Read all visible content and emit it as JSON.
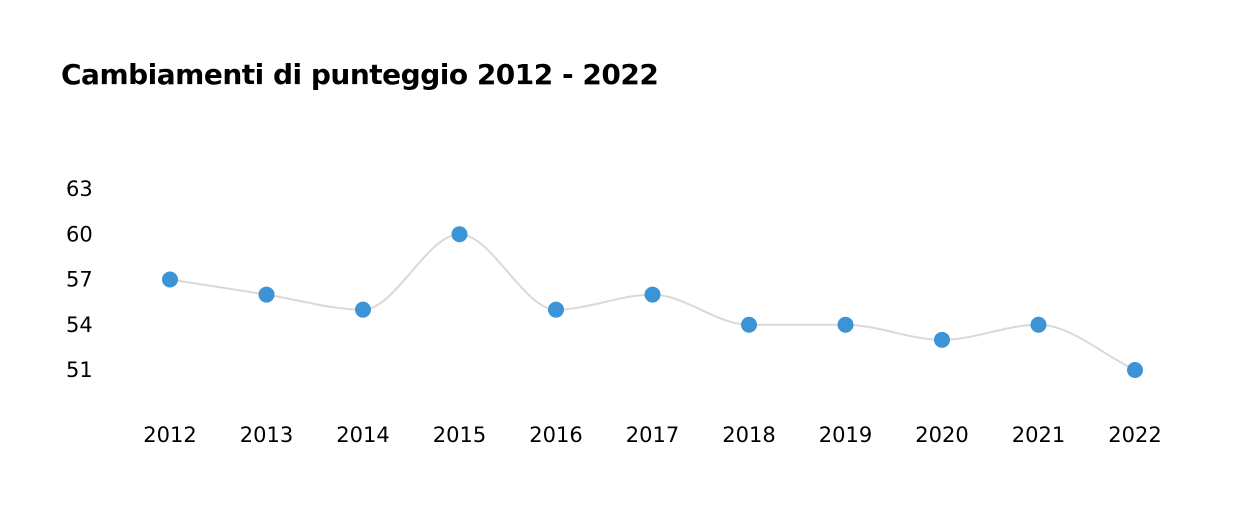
{
  "chart_data": {
    "type": "line",
    "title": "Cambiamenti di punteggio 2012 - 2022",
    "xlabel": "",
    "ylabel": "",
    "categories": [
      "2012",
      "2013",
      "2014",
      "2015",
      "2016",
      "2017",
      "2018",
      "2019",
      "2020",
      "2021",
      "2022"
    ],
    "series": [
      {
        "values": [
          57,
          56,
          55,
          60,
          55,
          56,
          54,
          54,
          53,
          54,
          51
        ]
      }
    ],
    "yticks": [
      51,
      54,
      57,
      60,
      63
    ],
    "ylim": [
      51,
      63
    ],
    "grid": false,
    "legend": "none",
    "line_color": "#d9d9d9",
    "marker_color": "#3c93d5",
    "smooth": true
  }
}
